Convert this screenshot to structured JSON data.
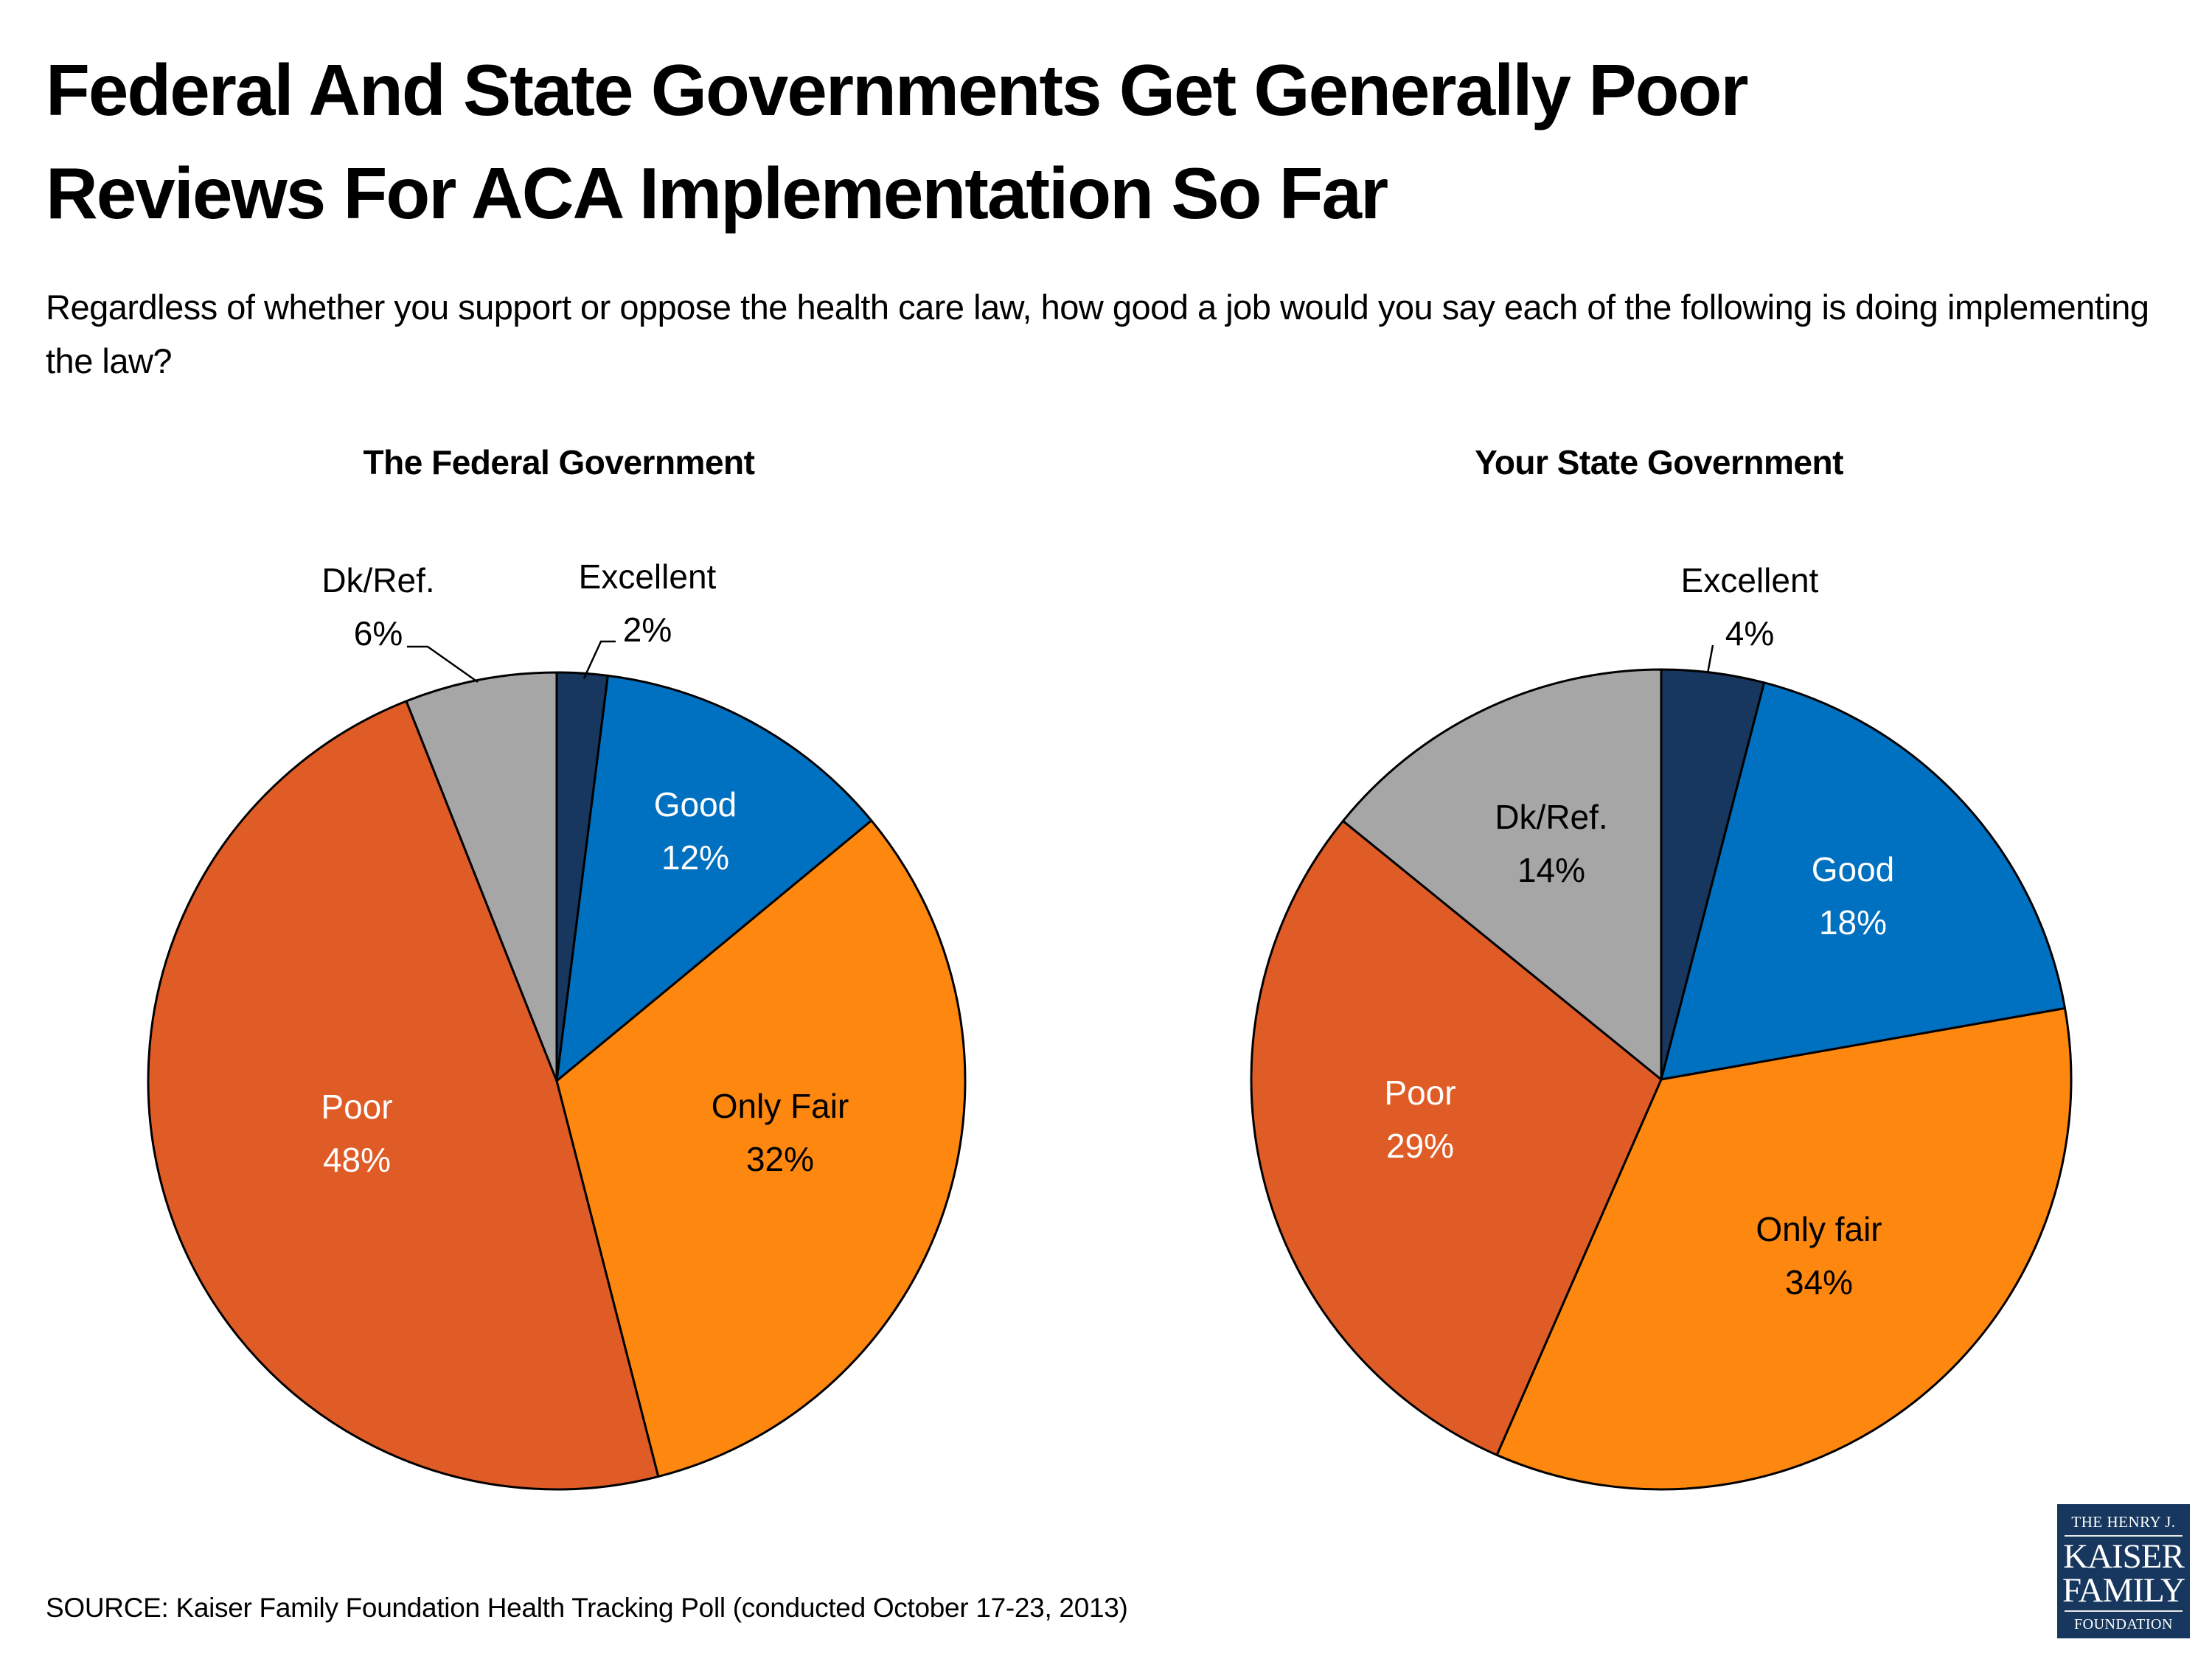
{
  "title_line1": "Federal And State Governments Get Generally Poor",
  "title_line2": "Reviews For ACA Implementation So Far",
  "subtitle": "Regardless of whether you support or oppose the health care law, how good a job would you say each of the following is doing implementing the law?",
  "source": "SOURCE: Kaiser Family Foundation Health Tracking Poll (conducted October 17-23, 2013)",
  "logo": {
    "line1": "THE HENRY J.",
    "line2": "KAISER",
    "line3": "FAMILY",
    "line4": "FOUNDATION"
  },
  "colors": {
    "excellent": "#17375E",
    "good": "#0070C0",
    "only_fair": "#FD870F",
    "poor": "#E05C27",
    "dk_ref": "#A6A6A6"
  },
  "chart_data": [
    {
      "type": "pie",
      "title": "The Federal Government",
      "start_angle": "12 o'clock, clockwise",
      "slices": [
        {
          "label": "Excellent",
          "value": 2,
          "display": "2%",
          "color_key": "excellent",
          "label_color": "#000000",
          "label_position": "outside-leader"
        },
        {
          "label": "Good",
          "value": 12,
          "display": "12%",
          "color_key": "good",
          "label_color": "#FFFFFF",
          "label_position": "inside"
        },
        {
          "label": "Only Fair",
          "value": 32,
          "display": "32%",
          "color_key": "only_fair",
          "label_color": "#000000",
          "label_position": "inside"
        },
        {
          "label": "Poor",
          "value": 48,
          "display": "48%",
          "color_key": "poor",
          "label_color": "#FFFFFF",
          "label_position": "inside"
        },
        {
          "label": "Dk/Ref.",
          "value": 6,
          "display": "6%",
          "color_key": "dk_ref",
          "label_color": "#000000",
          "label_position": "outside-leader"
        }
      ]
    },
    {
      "type": "pie",
      "title": "Your State Government",
      "start_angle": "12 o'clock, clockwise",
      "slices": [
        {
          "label": "Excellent",
          "value": 4,
          "display": "4%",
          "color_key": "excellent",
          "label_color": "#000000",
          "label_position": "outside-leader"
        },
        {
          "label": "Good",
          "value": 18,
          "display": "18%",
          "color_key": "good",
          "label_color": "#FFFFFF",
          "label_position": "inside"
        },
        {
          "label": "Only fair",
          "value": 34,
          "display": "34%",
          "color_key": "only_fair",
          "label_color": "#000000",
          "label_position": "inside"
        },
        {
          "label": "Poor",
          "value": 29,
          "display": "29%",
          "color_key": "poor",
          "label_color": "#FFFFFF",
          "label_position": "inside"
        },
        {
          "label": "Dk/Ref.",
          "value": 14,
          "display": "14%",
          "color_key": "dk_ref",
          "label_color": "#000000",
          "label_position": "inside"
        }
      ]
    }
  ]
}
